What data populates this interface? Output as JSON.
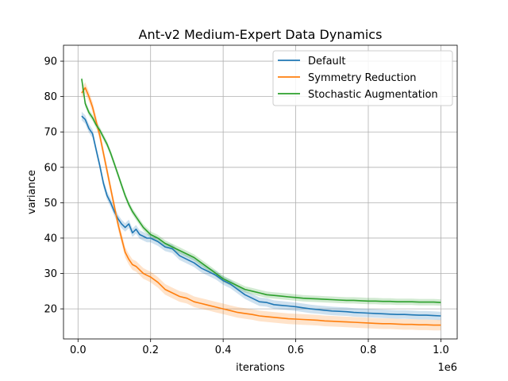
{
  "chart_data": {
    "type": "line",
    "title": "Ant-v2 Medium-Expert Data Dynamics",
    "xlabel": "iterations",
    "ylabel": "variance",
    "x_offset_label": "1e6",
    "xlim": [
      -0.04,
      1.045
    ],
    "ylim": [
      11.5,
      94.5
    ],
    "xticks": [
      0.0,
      0.2,
      0.4,
      0.6,
      0.8,
      1.0
    ],
    "xtick_labels": [
      "0.0",
      "0.2",
      "0.4",
      "0.6",
      "0.8",
      "1.0"
    ],
    "yticks": [
      20,
      30,
      40,
      50,
      60,
      70,
      80,
      90
    ],
    "ytick_labels": [
      "20",
      "30",
      "40",
      "50",
      "60",
      "70",
      "80",
      "90"
    ],
    "grid": true,
    "legend_position": "upper right",
    "x": [
      0.01,
      0.02,
      0.03,
      0.04,
      0.05,
      0.06,
      0.07,
      0.08,
      0.09,
      0.1,
      0.11,
      0.12,
      0.13,
      0.14,
      0.15,
      0.16,
      0.17,
      0.18,
      0.19,
      0.2,
      0.22,
      0.24,
      0.26,
      0.28,
      0.3,
      0.32,
      0.34,
      0.36,
      0.38,
      0.4,
      0.42,
      0.44,
      0.46,
      0.48,
      0.5,
      0.52,
      0.54,
      0.56,
      0.58,
      0.6,
      0.62,
      0.64,
      0.66,
      0.68,
      0.7,
      0.72,
      0.74,
      0.76,
      0.78,
      0.8,
      0.82,
      0.84,
      0.86,
      0.88,
      0.9,
      0.92,
      0.94,
      0.96,
      0.98,
      1.0
    ],
    "series": [
      {
        "name": "Default",
        "color": "#1f77b4",
        "values": [
          74.5,
          73.5,
          71.0,
          69.5,
          65.0,
          60.5,
          55.5,
          52.0,
          50.0,
          47.5,
          45.5,
          44.0,
          43.0,
          44.0,
          41.5,
          42.5,
          41.0,
          40.5,
          40.0,
          40.0,
          39.0,
          37.5,
          37.0,
          35.0,
          34.0,
          33.0,
          31.5,
          30.5,
          29.5,
          28.0,
          27.0,
          25.5,
          24.0,
          23.0,
          22.0,
          21.8,
          21.2,
          21.0,
          20.8,
          20.6,
          20.3,
          20.0,
          19.8,
          19.6,
          19.4,
          19.3,
          19.2,
          19.0,
          18.9,
          18.8,
          18.7,
          18.6,
          18.5,
          18.4,
          18.4,
          18.3,
          18.2,
          18.2,
          18.1,
          18.0
        ],
        "band": 1.2
      },
      {
        "name": "Symmetry Reduction",
        "color": "#ff7f0e",
        "values": [
          81.0,
          82.5,
          80.0,
          77.0,
          73.0,
          69.0,
          64.0,
          59.0,
          54.0,
          49.0,
          44.0,
          40.0,
          36.0,
          34.0,
          32.5,
          32.0,
          31.0,
          30.0,
          29.5,
          29.0,
          27.5,
          25.5,
          24.5,
          23.5,
          23.0,
          22.0,
          21.5,
          21.0,
          20.5,
          20.0,
          19.5,
          19.0,
          18.7,
          18.4,
          18.0,
          17.8,
          17.6,
          17.4,
          17.2,
          17.1,
          17.0,
          16.9,
          16.8,
          16.6,
          16.5,
          16.4,
          16.3,
          16.2,
          16.1,
          16.0,
          15.9,
          15.8,
          15.8,
          15.7,
          15.6,
          15.6,
          15.5,
          15.5,
          15.4,
          15.4
        ],
        "band": 1.5
      },
      {
        "name": "Stochastic Augmentation",
        "color": "#2ca02c",
        "values": [
          85.0,
          78.0,
          75.5,
          74.0,
          72.0,
          70.5,
          68.5,
          66.5,
          64.0,
          61.0,
          58.0,
          55.0,
          52.0,
          49.5,
          47.5,
          46.0,
          44.5,
          43.0,
          42.0,
          41.0,
          40.0,
          38.5,
          37.5,
          36.5,
          35.5,
          34.5,
          33.0,
          31.5,
          30.0,
          28.5,
          27.5,
          26.5,
          25.5,
          25.0,
          24.5,
          24.0,
          23.8,
          23.6,
          23.4,
          23.2,
          23.0,
          22.9,
          22.8,
          22.7,
          22.6,
          22.5,
          22.4,
          22.4,
          22.3,
          22.2,
          22.2,
          22.1,
          22.1,
          22.0,
          22.0,
          22.0,
          21.9,
          21.9,
          21.9,
          21.8
        ],
        "band": 0.9
      }
    ]
  }
}
